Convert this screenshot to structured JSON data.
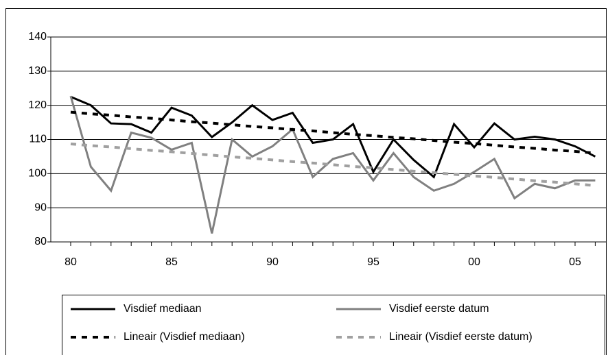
{
  "chart_data": {
    "type": "line",
    "categories": [
      "80",
      null,
      null,
      null,
      null,
      "85",
      null,
      null,
      null,
      null,
      "90",
      null,
      null,
      null,
      null,
      "95",
      null,
      null,
      null,
      null,
      "00",
      null,
      null,
      null,
      null,
      "05",
      null
    ],
    "ylim": [
      80,
      140
    ],
    "yticks": [
      80,
      90,
      100,
      110,
      120,
      130,
      140
    ],
    "grid": true,
    "series": [
      {
        "name": "Visdief mediaan",
        "color": "#000000",
        "dash": false,
        "values": [
          122.5,
          120,
          114.7,
          114.5,
          112,
          119.3,
          117,
          110.7,
          115,
          120,
          115.7,
          117.8,
          109,
          110,
          114.5,
          100.5,
          110,
          104,
          99,
          114.5,
          107.7,
          114.7,
          110,
          110.8,
          110,
          108,
          105
        ]
      },
      {
        "name": "Visdief eerste datum",
        "color": "#808080",
        "dash": false,
        "values": [
          122.7,
          102,
          95,
          112,
          110.5,
          107,
          109,
          82.5,
          110,
          105,
          108,
          113,
          99,
          104.3,
          106,
          98,
          106,
          99,
          95,
          97,
          100.5,
          104.3,
          92.8,
          97,
          95.7,
          98,
          98
        ]
      },
      {
        "name": "Lineair (Visdief mediaan)",
        "color": "#000000",
        "dash": true,
        "values": [
          118.0,
          117.5,
          117.1,
          116.6,
          116.2,
          115.7,
          115.2,
          114.8,
          114.3,
          113.8,
          113.4,
          112.9,
          112.5,
          112.0,
          111.5,
          111.1,
          110.6,
          110.2,
          109.7,
          109.2,
          108.8,
          108.3,
          107.8,
          107.4,
          106.9,
          106.5,
          106.0
        ]
      },
      {
        "name": "Lineair (Visdief eerste datum)",
        "color": "#a0a0a0",
        "dash": true,
        "values": [
          108.7,
          108.2,
          107.8,
          107.3,
          106.8,
          106.4,
          105.9,
          105.4,
          104.9,
          104.5,
          104.0,
          103.5,
          103.1,
          102.6,
          102.1,
          101.7,
          101.2,
          100.7,
          100.3,
          99.8,
          99.3,
          98.9,
          98.4,
          97.9,
          97.5,
          97.0,
          96.5
        ]
      }
    ]
  }
}
